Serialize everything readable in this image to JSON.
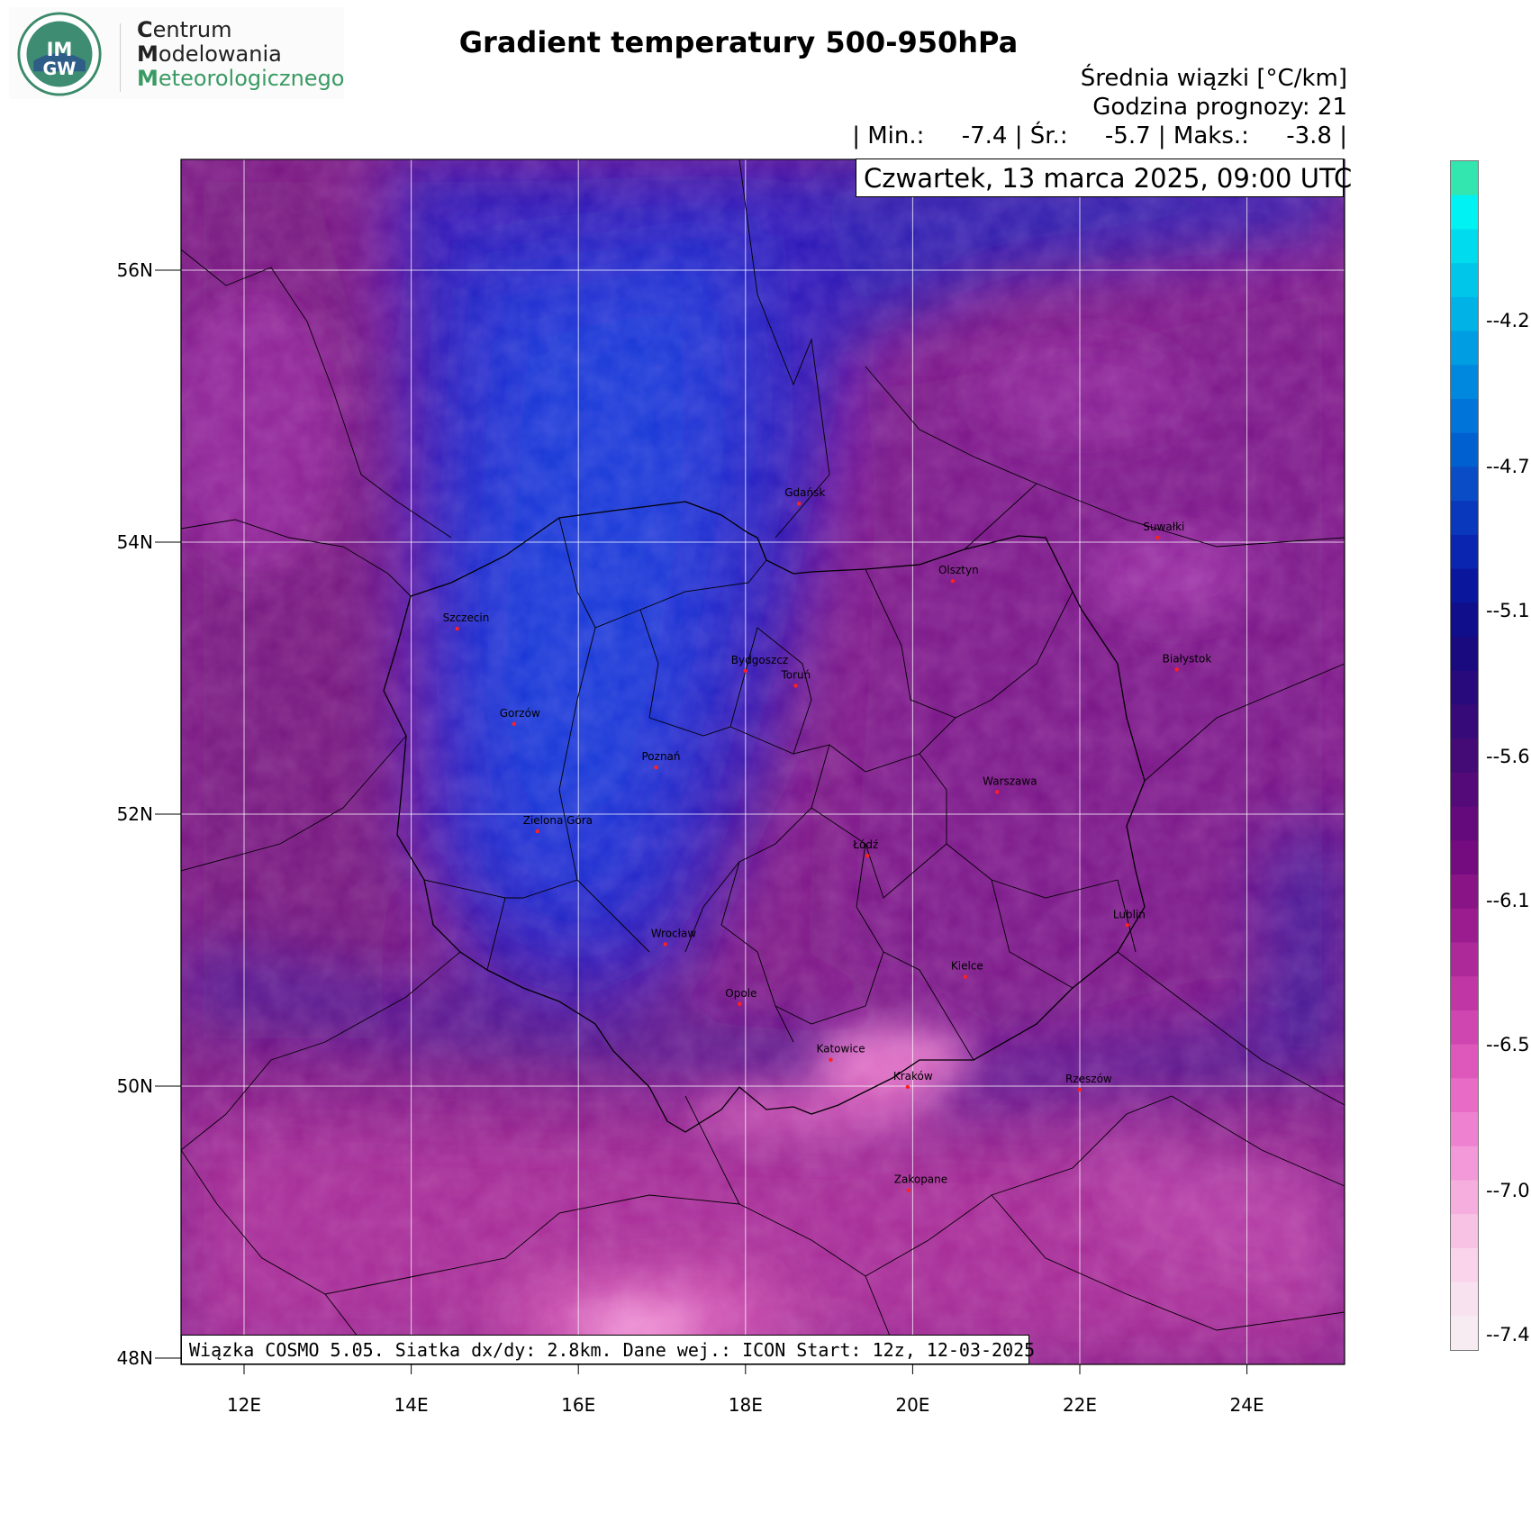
{
  "logo": {
    "line1_initial": "C",
    "line1_rest": "entrum",
    "line2_initial": "M",
    "line2_rest": "odelowania",
    "line3_initial": "M",
    "line3_rest": "eteorologicznego",
    "seal_text": "IMGW"
  },
  "title": "Gradient temperatury 500-950hPa",
  "subtitle_units": "Średnia wiązki [°C/km]",
  "subtitle_forecast": "Godzina prognozy: 21",
  "stats": "| Min.:     -7.4 | Śr.:     -5.7 | Maks.:     -3.8 |",
  "date": "Czwartek, 13 marca 2025, 09:00 UTC",
  "footer": "Wiązka COSMO 5.05. Siatka dx/dy: 2.8km. Dane wej.: ICON Start: 12z, 12-03-2025",
  "lat_labels": [
    "56N",
    "54N",
    "52N",
    "50N",
    "48N"
  ],
  "lon_labels": [
    "12E",
    "14E",
    "16E",
    "18E",
    "20E",
    "22E",
    "24E"
  ],
  "cities": [
    {
      "name": "Gdańsk",
      "lon": 18.64,
      "lat": 54.35
    },
    {
      "name": "Suwałki",
      "lon": 22.93,
      "lat": 54.1
    },
    {
      "name": "Olsztyn",
      "lon": 20.48,
      "lat": 53.78
    },
    {
      "name": "Białystok",
      "lon": 23.16,
      "lat": 53.13
    },
    {
      "name": "Szczecin",
      "lon": 14.55,
      "lat": 53.43
    },
    {
      "name": "Bydgoszcz",
      "lon": 18.0,
      "lat": 53.12
    },
    {
      "name": "Toruń",
      "lon": 18.6,
      "lat": 53.01
    },
    {
      "name": "Gorzów",
      "lon": 15.23,
      "lat": 52.73
    },
    {
      "name": "Poznań",
      "lon": 16.93,
      "lat": 52.41
    },
    {
      "name": "Warszawa",
      "lon": 21.01,
      "lat": 52.23
    },
    {
      "name": "Łódź",
      "lon": 19.46,
      "lat": 51.76
    },
    {
      "name": "Zielona Góra",
      "lon": 15.51,
      "lat": 51.94
    },
    {
      "name": "Lublin",
      "lon": 22.57,
      "lat": 51.25
    },
    {
      "name": "Wrocław",
      "lon": 17.04,
      "lat": 51.11
    },
    {
      "name": "Kielce",
      "lon": 20.63,
      "lat": 50.87
    },
    {
      "name": "Opole",
      "lon": 17.93,
      "lat": 50.67
    },
    {
      "name": "Rzeszów",
      "lon": 22.0,
      "lat": 50.04
    },
    {
      "name": "Katowice",
      "lon": 19.02,
      "lat": 50.26
    },
    {
      "name": "Kraków",
      "lon": 19.94,
      "lat": 50.06
    },
    {
      "name": "Zakopane",
      "lon": 19.95,
      "lat": 49.3
    }
  ],
  "colorbar": {
    "labels": [
      "-4.2",
      "-4.7",
      "-5.1",
      "-5.6",
      "-6.1",
      "-6.5",
      "-7.0",
      "-7.4"
    ],
    "colors_top_to_bottom": [
      "#33e6b0",
      "#00f2f2",
      "#00dcee",
      "#00c6ea",
      "#00b2e6",
      "#009de2",
      "#0088de",
      "#0074d8",
      "#0060d0",
      "#0a4cc6",
      "#0a38bc",
      "#0a26b0",
      "#0a169c",
      "#100e8a",
      "#1a0a80",
      "#280a7c",
      "#360a78",
      "#440a76",
      "#540a78",
      "#640a7c",
      "#740c80",
      "#881486",
      "#9a1c8e",
      "#ad2898",
      "#c036a4",
      "#d046b0",
      "#de58bc",
      "#e86cc6",
      "#ef82d0",
      "#f398d8",
      "#f6aede",
      "#f8c2e4",
      "#f9d4ea",
      "#f9e2ef",
      "#f6ecf1"
    ]
  }
}
